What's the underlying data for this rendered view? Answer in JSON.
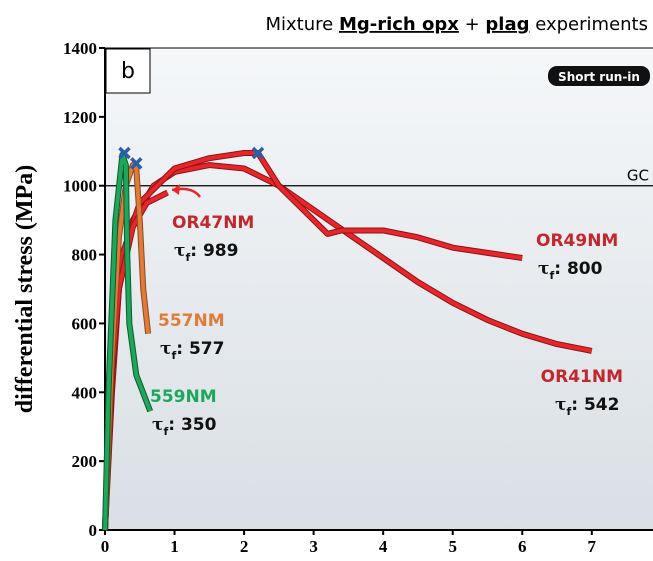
{
  "chart_data": {
    "type": "line",
    "title_parts": [
      "Mixture ",
      "Mg-rich opx",
      " + ",
      "plag",
      " experiments"
    ],
    "panel_label": "b",
    "badge": "Short run-in",
    "y_label": "differential stress (MPa)",
    "xlim": [
      0,
      7.88
    ],
    "ylim": [
      0,
      1400
    ],
    "xticks": [
      0,
      1,
      2,
      3,
      4,
      5,
      6,
      7,
      8
    ],
    "yticks": [
      0,
      200,
      400,
      600,
      800,
      1000,
      1200,
      1400
    ],
    "reference_lines": [
      {
        "value": 1000,
        "label": "GC"
      }
    ],
    "tau_symbol": "τ",
    "tau_subscript": "f",
    "tau_separator": ": ",
    "series": [
      {
        "name": "OR41NM",
        "color": "#e8262a",
        "tau_f": 542,
        "x": [
          0,
          0.1,
          0.2,
          0.4,
          0.7,
          1,
          1.5,
          2,
          2.5,
          3,
          3.5,
          4,
          4.5,
          5,
          5.5,
          6,
          6.5,
          7
        ],
        "values": [
          0,
          400,
          700,
          900,
          1000,
          1040,
          1060,
          1050,
          1000,
          930,
          860,
          790,
          720,
          660,
          610,
          570,
          540,
          520
        ]
      },
      {
        "name": "OR49NM",
        "color": "#e8262a",
        "tau_f": 800,
        "x": [
          0,
          0.1,
          0.25,
          0.5,
          1,
          1.5,
          2,
          2.2,
          2.5,
          3,
          3.2,
          3.4,
          4,
          4.5,
          5,
          5.5,
          6
        ],
        "values": [
          0,
          500,
          800,
          950,
          1050,
          1080,
          1095,
          1095,
          1000,
          900,
          860,
          870,
          870,
          850,
          820,
          805,
          790
        ],
        "failure_x": 2.2,
        "failure_y": 1095
      },
      {
        "name": "OR47NM",
        "color": "#e8262a",
        "tau_f": 989,
        "x": [
          0,
          0.1,
          0.2,
          0.4,
          0.6,
          0.9
        ],
        "values": [
          0,
          450,
          700,
          880,
          950,
          980
        ]
      },
      {
        "name": "557NM",
        "color": "#e07b39",
        "tau_f": 577,
        "x": [
          0,
          0.1,
          0.2,
          0.3,
          0.4,
          0.45,
          0.5,
          0.55,
          0.62
        ],
        "values": [
          0,
          500,
          850,
          1000,
          1060,
          1050,
          900,
          700,
          570
        ],
        "failure_x": 0.45,
        "failure_y": 1065
      },
      {
        "name": "559NM",
        "color": "#1ea65a",
        "tau_f": 350,
        "x": [
          0,
          0.05,
          0.15,
          0.25,
          0.3,
          0.32,
          0.35,
          0.45,
          0.65
        ],
        "values": [
          0,
          400,
          900,
          1090,
          1060,
          800,
          600,
          450,
          345
        ],
        "failure_x": 0.28,
        "failure_y": 1095
      }
    ]
  }
}
